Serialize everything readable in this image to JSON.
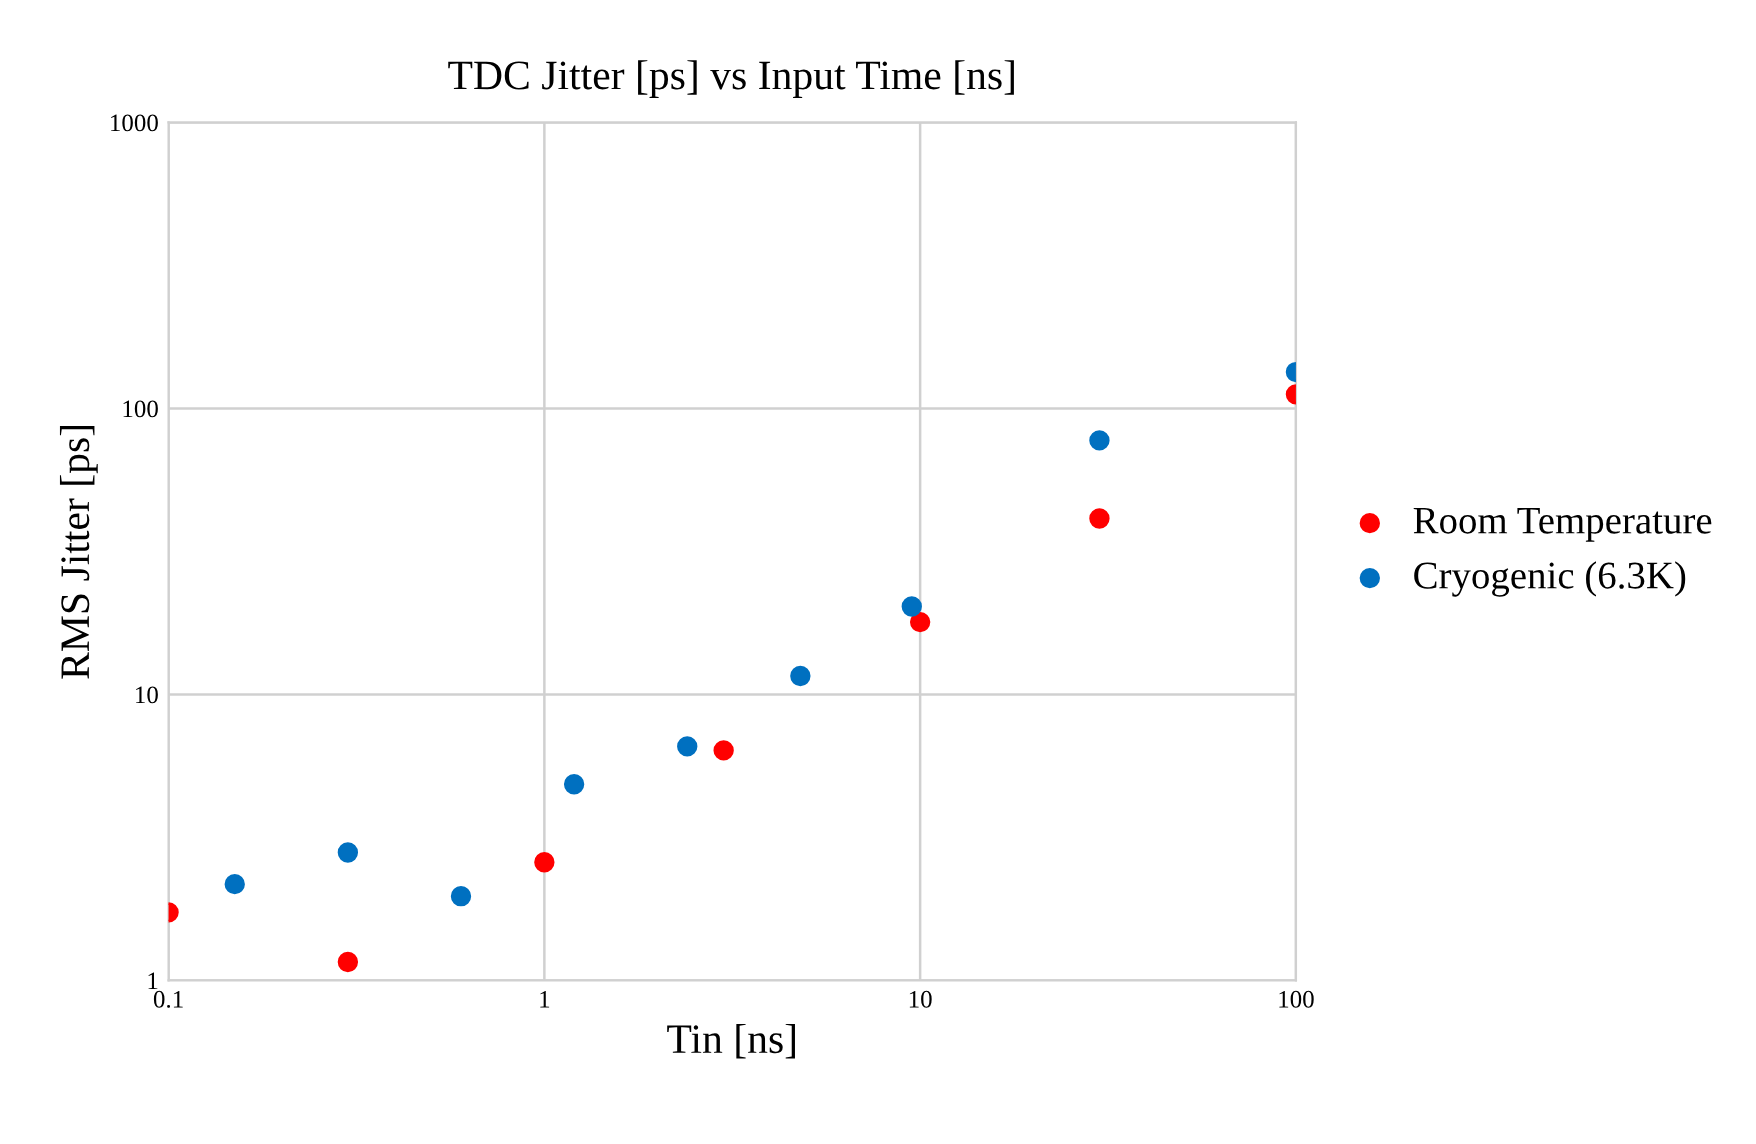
{
  "chart_data": {
    "type": "scatter",
    "title": "TDC Jitter [ps] vs Input Time [ns]",
    "xlabel": "Tin [ns]",
    "ylabel": "RMS Jitter [ps]",
    "log": "xy",
    "xlim": [
      0.1,
      100
    ],
    "ylim": [
      1,
      1000
    ],
    "xticks": [
      0.1,
      1,
      10,
      100
    ],
    "yticks": [
      1,
      10,
      100,
      1000
    ],
    "grid": true,
    "legend": "right",
    "marker": "circle",
    "series": [
      {
        "name": "Room Temperature",
        "color": "#ff0000",
        "x": [
          0.1,
          0.3,
          1,
          3,
          10,
          30,
          100
        ],
        "values": [
          1.73,
          1.16,
          2.59,
          6.37,
          17.9,
          41.2,
          112
        ]
      },
      {
        "name": "Cryogenic (6.3K)",
        "color": "#0070c0",
        "x": [
          0.15,
          0.3,
          0.6,
          1.2,
          2.4,
          4.8,
          9.5,
          30,
          100
        ],
        "values": [
          2.17,
          2.8,
          1.97,
          4.85,
          6.58,
          11.6,
          20.3,
          77.3,
          134
        ]
      }
    ]
  }
}
